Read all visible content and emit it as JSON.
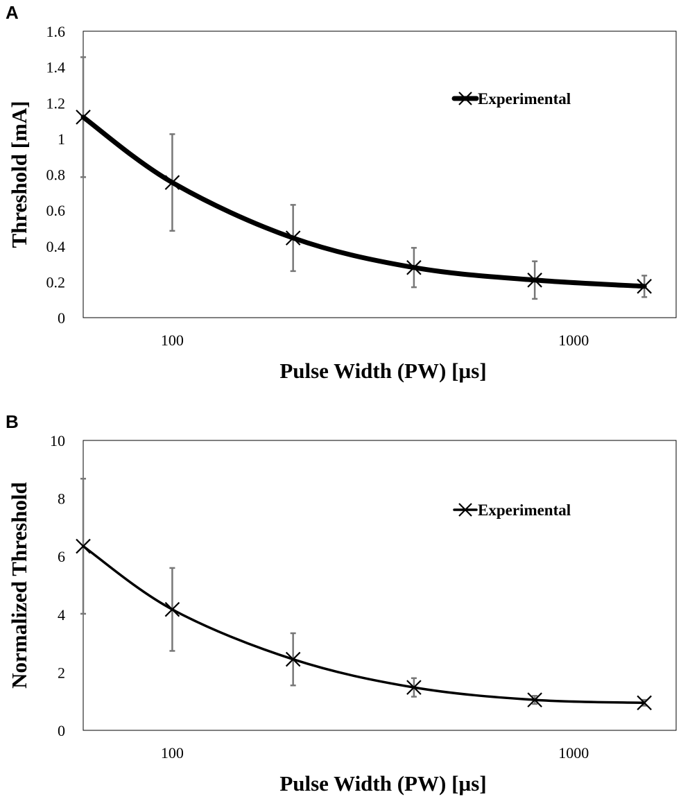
{
  "chart_data": [
    {
      "panel_label": "A",
      "type": "line",
      "xscale": "log",
      "xlim": [
        60,
        1800
      ],
      "ylim": [
        0,
        1.6
      ],
      "yticks": [
        "0",
        "0.2",
        "0.4",
        "0.6",
        "0.8",
        "1",
        "1.2",
        "1.4",
        "1.6"
      ],
      "xticks": [
        {
          "value": 100,
          "label": "100"
        },
        {
          "value": 1000,
          "label": "1000"
        }
      ],
      "xlabel": "Pulse Width (PW) [µs]",
      "ylabel": "Threshold [mA]",
      "legend_position": "top-right",
      "line_weight": "thick",
      "series": [
        {
          "name": "Experimental",
          "marker": "x",
          "x": [
            60,
            100,
            200,
            400,
            800,
            1500
          ],
          "y": [
            1.12,
            0.755,
            0.445,
            0.28,
            0.21,
            0.175
          ],
          "err": [
            0.335,
            0.27,
            0.185,
            0.11,
            0.105,
            0.06
          ]
        }
      ]
    },
    {
      "panel_label": "B",
      "type": "line",
      "xscale": "log",
      "xlim": [
        60,
        1800
      ],
      "ylim": [
        0,
        10
      ],
      "yticks": [
        "0",
        "2",
        "4",
        "6",
        "8",
        "10"
      ],
      "xticks": [
        {
          "value": 100,
          "label": "100"
        },
        {
          "value": 1000,
          "label": "1000"
        }
      ],
      "xlabel": "Pulse Width (PW) [µs]",
      "ylabel": "Normalized Threshold",
      "legend_position": "top-right",
      "line_weight": "medium",
      "series": [
        {
          "name": "Experimental",
          "marker": "x",
          "x": [
            60,
            100,
            200,
            400,
            800,
            1500
          ],
          "y": [
            6.35,
            4.17,
            2.45,
            1.48,
            1.05,
            0.95
          ],
          "err": [
            2.33,
            1.43,
            0.9,
            0.32,
            0.14,
            0.1
          ]
        }
      ]
    }
  ]
}
